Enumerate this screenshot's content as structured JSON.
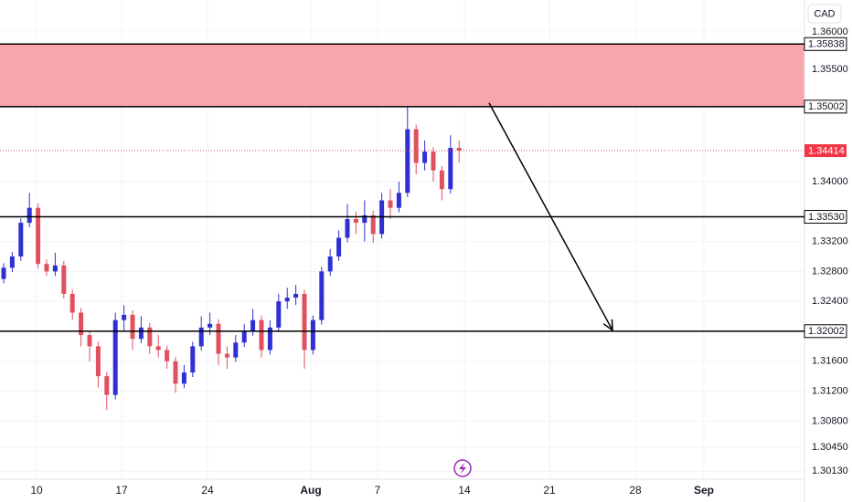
{
  "chart_data": {
    "type": "candlestick",
    "currency": "CAD",
    "ylim": [
      1.30024,
      1.36427
    ],
    "yticks": [
      {
        "value": 1.36,
        "label": "1.36000"
      },
      {
        "value": 1.355,
        "label": "1.35500"
      },
      {
        "value": 1.34,
        "label": "1.34000"
      },
      {
        "value": 1.332,
        "label": "1.33200"
      },
      {
        "value": 1.328,
        "label": "1.32800"
      },
      {
        "value": 1.324,
        "label": "1.32400"
      },
      {
        "value": 1.316,
        "label": "1.31600"
      },
      {
        "value": 1.312,
        "label": "1.31200"
      },
      {
        "value": 1.308,
        "label": "1.30800"
      },
      {
        "value": 1.3045,
        "label": "1.30450"
      },
      {
        "value": 1.3013,
        "label": "1.30130"
      }
    ],
    "x_labels": [
      "10",
      "17",
      "24",
      "Aug",
      "7",
      "14",
      "21",
      "28",
      "Sep"
    ],
    "up_color": "#2f2fd4",
    "down_color": "#e0505f",
    "zone_color": "#f8a5ab",
    "grid": true,
    "levels": [
      {
        "value": 1.35838,
        "label": "1.35838"
      },
      {
        "value": 1.35002,
        "label": "1.35002"
      },
      {
        "value": 1.3353,
        "label": "1.33530"
      },
      {
        "value": 1.32002,
        "label": "1.32002"
      }
    ],
    "current_price": {
      "value": 1.34414,
      "label": "1.34414"
    },
    "open": [
      1.327,
      1.3285,
      1.33,
      1.3345,
      1.3365,
      1.329,
      1.328,
      1.3288,
      1.325,
      1.3225,
      1.3195,
      1.318,
      1.314,
      1.3115,
      1.3215,
      1.3222,
      1.319,
      1.3205,
      1.318,
      1.3175,
      1.316,
      1.313,
      1.3145,
      1.318,
      1.3205,
      1.321,
      1.317,
      1.3165,
      1.3185,
      1.32,
      1.3215,
      1.3175,
      1.3205,
      1.324,
      1.3245,
      1.325,
      1.3175,
      1.3215,
      1.328,
      1.33,
      1.3325,
      1.335,
      1.3345,
      1.3355,
      1.333,
      1.3375,
      1.3365,
      1.3385,
      1.347,
      1.3425,
      1.344,
      1.3415,
      1.339,
      1.3445
    ],
    "high": [
      1.3291,
      1.3306,
      1.3351,
      1.3385,
      1.3371,
      1.3296,
      1.3305,
      1.3294,
      1.3256,
      1.3231,
      1.3201,
      1.3186,
      1.3146,
      1.3225,
      1.3235,
      1.3228,
      1.322,
      1.3211,
      1.3195,
      1.3181,
      1.3166,
      1.3155,
      1.3186,
      1.322,
      1.3225,
      1.3216,
      1.318,
      1.3195,
      1.321,
      1.323,
      1.3221,
      1.3215,
      1.325,
      1.3258,
      1.3262,
      1.3256,
      1.3221,
      1.3286,
      1.331,
      1.3335,
      1.337,
      1.336,
      1.3375,
      1.3361,
      1.3385,
      1.339,
      1.34,
      1.35,
      1.3476,
      1.3455,
      1.3446,
      1.3421,
      1.3462,
      1.3455
    ],
    "low": [
      1.3264,
      1.3279,
      1.3294,
      1.3339,
      1.3284,
      1.3274,
      1.3274,
      1.3244,
      1.3215,
      1.318,
      1.316,
      1.3125,
      1.3095,
      1.3109,
      1.32,
      1.3175,
      1.3184,
      1.317,
      1.3165,
      1.315,
      1.3118,
      1.3124,
      1.3139,
      1.3174,
      1.3195,
      1.3155,
      1.315,
      1.3159,
      1.3179,
      1.3194,
      1.3165,
      1.3169,
      1.3199,
      1.323,
      1.3235,
      1.315,
      1.3169,
      1.3209,
      1.3274,
      1.3294,
      1.3319,
      1.333,
      1.332,
      1.3318,
      1.3324,
      1.335,
      1.3359,
      1.3379,
      1.341,
      1.3415,
      1.34,
      1.3375,
      1.3384,
      1.3425
    ],
    "close": [
      1.3285,
      1.33,
      1.3345,
      1.3365,
      1.329,
      1.328,
      1.3288,
      1.325,
      1.3225,
      1.3195,
      1.318,
      1.314,
      1.3115,
      1.3215,
      1.3222,
      1.319,
      1.3205,
      1.318,
      1.3175,
      1.316,
      1.313,
      1.3145,
      1.318,
      1.3205,
      1.321,
      1.317,
      1.3165,
      1.3185,
      1.32,
      1.3215,
      1.3175,
      1.3205,
      1.324,
      1.3245,
      1.325,
      1.3175,
      1.3215,
      1.328,
      1.33,
      1.3325,
      1.335,
      1.3345,
      1.3355,
      1.333,
      1.3375,
      1.3365,
      1.3385,
      1.347,
      1.3425,
      1.344,
      1.3415,
      1.339,
      1.3445,
      1.34414
    ]
  }
}
